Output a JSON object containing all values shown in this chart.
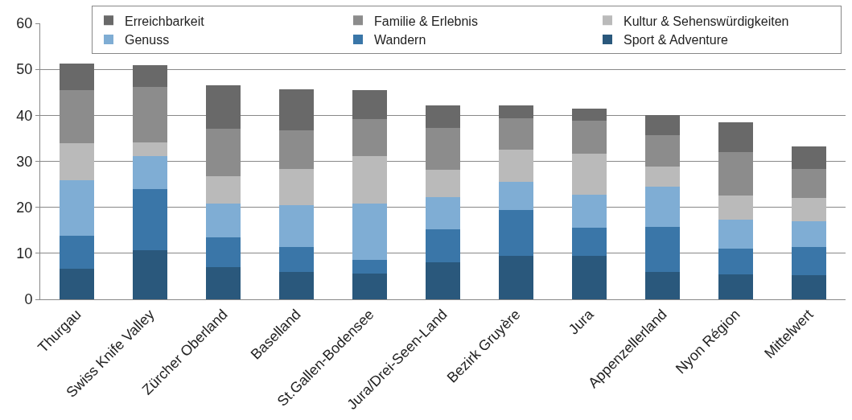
{
  "chart_data": {
    "type": "bar",
    "stacked": true,
    "categories": [
      "Thurgau",
      "Swiss Knife Valley",
      "Zürcher Oberland",
      "Baselland",
      "St.Gallen-Bodensee",
      "Jura/Drei-Seen-Land",
      "Bezirk Gruyère",
      "Jura",
      "Appenzellerland",
      "Nyon Région",
      "Mittelwert"
    ],
    "series": [
      {
        "name": "Sport & Adventure",
        "color": "#2a587c",
        "values": [
          6.7,
          10.7,
          7.0,
          5.9,
          5.6,
          8.0,
          9.4,
          9.4,
          5.9,
          5.5,
          5.2
        ]
      },
      {
        "name": "Wandern",
        "color": "#3a76a8",
        "values": [
          7.1,
          13.2,
          6.5,
          5.5,
          3.0,
          7.3,
          10.0,
          6.1,
          9.9,
          5.5,
          6.2
        ]
      },
      {
        "name": "Genuss",
        "color": "#7fadd4",
        "values": [
          12.1,
          7.2,
          7.3,
          9.0,
          12.2,
          6.9,
          6.1,
          7.3,
          8.7,
          6.3,
          5.5
        ]
      },
      {
        "name": "Kultur & Sehenswürdigkeiten",
        "color": "#bababa",
        "values": [
          8.1,
          3.0,
          6.0,
          8.0,
          10.4,
          5.9,
          7.0,
          8.8,
          4.3,
          5.2,
          5.2
        ]
      },
      {
        "name": "Familie & Erlebnis",
        "color": "#8c8c8c",
        "values": [
          11.4,
          12.0,
          10.3,
          8.4,
          8.0,
          9.2,
          6.9,
          7.2,
          6.8,
          9.5,
          6.3
        ]
      },
      {
        "name": "Erreichbarkeit",
        "color": "#696969",
        "values": [
          5.8,
          4.8,
          9.5,
          8.9,
          6.2,
          4.9,
          2.8,
          2.7,
          4.5,
          6.4,
          4.8
        ]
      }
    ],
    "ylim": [
      0,
      60
    ],
    "yticks": [
      0,
      10,
      20,
      30,
      40,
      50,
      60
    ],
    "grid": "y",
    "legend": "top right"
  }
}
